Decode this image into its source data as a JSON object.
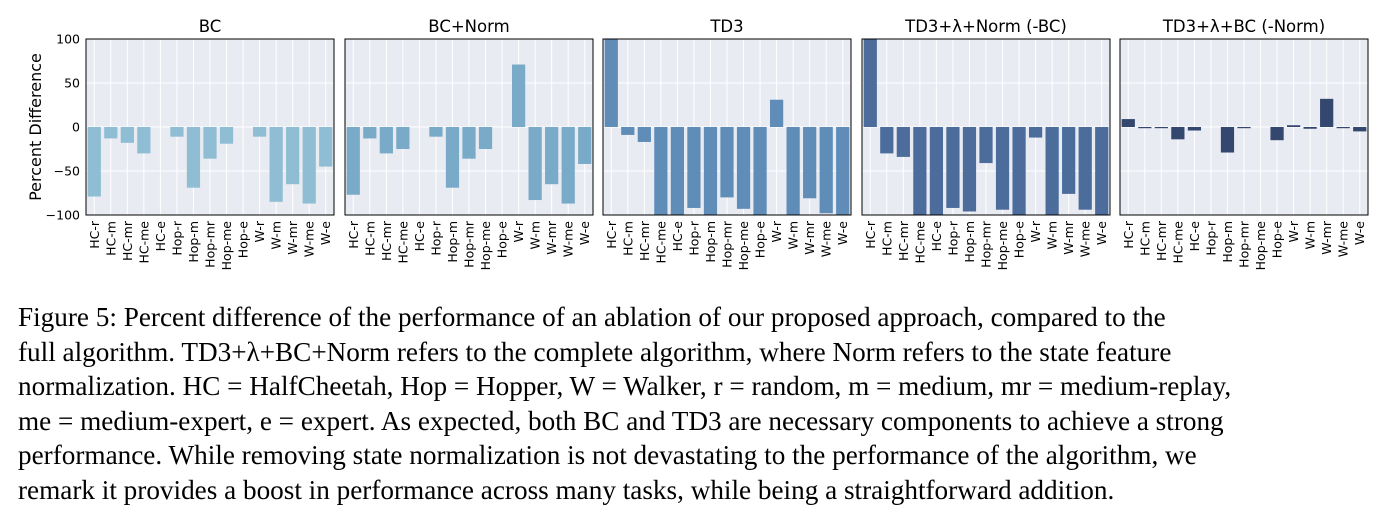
{
  "chart_data": [
    {
      "type": "bar",
      "title": "BC",
      "categories": [
        "HC-r",
        "HC-m",
        "HC-mr",
        "HC-me",
        "HC-e",
        "Hop-r",
        "Hop-m",
        "Hop-mr",
        "Hop-me",
        "Hop-e",
        "W-r",
        "W-m",
        "W-mr",
        "W-me",
        "W-e"
      ],
      "values": [
        -79,
        -13,
        -18,
        -30,
        0,
        -11,
        -69,
        -36,
        -19,
        0,
        -11,
        -85,
        -65,
        -87,
        -45
      ],
      "ylabel": "Percent Difference",
      "ylim": [
        -100,
        100
      ],
      "color": "#8fbdd3"
    },
    {
      "type": "bar",
      "title": "BC+Norm",
      "categories": [
        "HC-r",
        "HC-m",
        "HC-mr",
        "HC-me",
        "HC-e",
        "Hop-r",
        "Hop-m",
        "Hop-mr",
        "Hop-me",
        "Hop-e",
        "W-r",
        "W-m",
        "W-mr",
        "W-me",
        "W-e"
      ],
      "values": [
        -77,
        -13,
        -30,
        -25,
        0,
        -11,
        -69,
        -36,
        -25,
        0,
        71,
        -83,
        -65,
        -87,
        -42
      ],
      "ylim": [
        -100,
        100
      ],
      "color": "#79aac8"
    },
    {
      "type": "bar",
      "title": "TD3",
      "categories": [
        "HC-r",
        "HC-m",
        "HC-mr",
        "HC-me",
        "HC-e",
        "Hop-r",
        "Hop-m",
        "Hop-mr",
        "Hop-me",
        "Hop-e",
        "W-r",
        "W-m",
        "W-mr",
        "W-me",
        "W-e"
      ],
      "values": [
        100,
        -9,
        -17,
        -100,
        -100,
        -92,
        -100,
        -80,
        -93,
        -100,
        31,
        -100,
        -81,
        -98,
        -100
      ],
      "ylim": [
        -100,
        100
      ],
      "color": "#5f8db8"
    },
    {
      "type": "bar",
      "title": "TD3+λ+Norm (-BC)",
      "categories": [
        "HC-r",
        "HC-m",
        "HC-mr",
        "HC-me",
        "HC-e",
        "Hop-r",
        "Hop-m",
        "Hop-mr",
        "Hop-me",
        "Hop-e",
        "W-r",
        "W-m",
        "W-mr",
        "W-me",
        "W-e"
      ],
      "values": [
        100,
        -30,
        -34,
        -100,
        -100,
        -92,
        -96,
        -41,
        -94,
        -100,
        -12,
        -100,
        -76,
        -94,
        -100
      ],
      "ylim": [
        -100,
        100
      ],
      "color": "#4c6d9c"
    },
    {
      "type": "bar",
      "title": "TD3+λ+BC (-Norm)",
      "categories": [
        "HC-r",
        "HC-m",
        "HC-mr",
        "HC-me",
        "HC-e",
        "Hop-r",
        "Hop-m",
        "Hop-mr",
        "Hop-me",
        "Hop-e",
        "W-r",
        "W-m",
        "W-mr",
        "W-me",
        "W-e"
      ],
      "values": [
        9,
        -1,
        -1,
        -14,
        -4,
        0,
        -29,
        -1,
        0,
        -15,
        2,
        -2,
        32,
        -1,
        -5
      ],
      "ylim": [
        -100,
        100
      ],
      "color": "#34476f"
    }
  ],
  "axis": {
    "yticks": [
      100,
      50,
      0,
      -50,
      -100
    ],
    "ytick_labels": [
      "100",
      "50",
      "0",
      "−50",
      "−100"
    ]
  },
  "caption": {
    "lines": [
      "Figure 5: Percent difference of the performance of an ablation of our proposed approach, compared to the",
      "full algorithm. TD3+λ+BC+Norm refers to the complete algorithm, where Norm refers to the state feature",
      "normalization. HC = HalfCheetah, Hop = Hopper, W = Walker, r = random, m = medium, mr = medium-replay,",
      "me = medium-expert, e = expert. As expected, both BC and TD3 are necessary components to achieve a strong",
      "performance. While removing state normalization is not devastating to the performance of the algorithm, we",
      "remark it provides a boost in performance across many tasks, while being a straightforward addition."
    ]
  }
}
